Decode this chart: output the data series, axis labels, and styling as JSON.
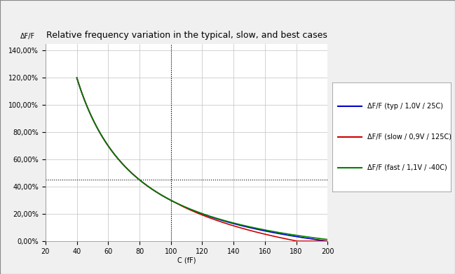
{
  "title": "Relative frequency variation in the typical, slow, and best cases",
  "xlabel": "C (fF)",
  "ylabel": "ΔF/F",
  "x_start": 20,
  "x_end": 200,
  "x_ticks": [
    20,
    40,
    60,
    80,
    100,
    120,
    140,
    160,
    180,
    200
  ],
  "y_ticks_labels": [
    "0,00%",
    "20,00%",
    "40,00%",
    "60,00%",
    "80,00%",
    "100,00%",
    "120,00%",
    "140,00%"
  ],
  "y_ticks_values": [
    0,
    20,
    40,
    60,
    80,
    100,
    120,
    140
  ],
  "ylim": [
    0,
    145
  ],
  "xlim": [
    20,
    200
  ],
  "ref_x": 100,
  "ref_y": 45,
  "line_typ_color": "#0000cc",
  "line_slow_color": "#cc0000",
  "line_fast_color": "#008000",
  "background_color": "#f0f0f0",
  "plot_bg_color": "#ffffff",
  "grid_color": "#c0c0c0",
  "title_fontsize": 9,
  "axis_label_fontsize": 7,
  "tick_fontsize": 7,
  "legend_fontsize": 7,
  "legend_labels": [
    "ΔF/F (typ / 1,0V / 25C)",
    "ΔF/F (slow / 0,9V / 125C)",
    "ΔF/F (fast / 1,1V / -40C)"
  ]
}
